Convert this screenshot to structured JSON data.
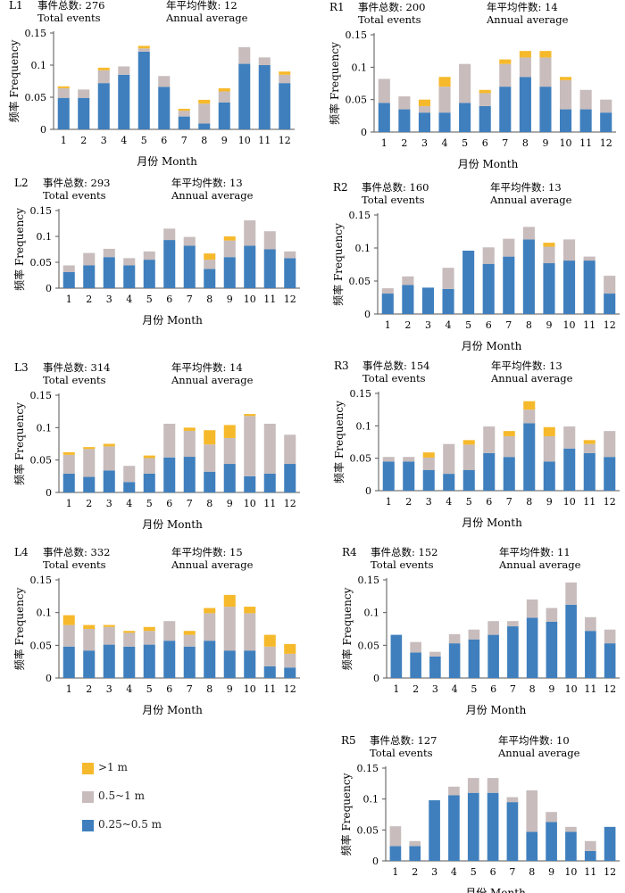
{
  "figure": {
    "labels": {
      "total_events": "Total events",
      "total_events_cn": "事件总数:",
      "annual_average": "Annual average",
      "annual_average_cn": "年平均件数:",
      "xlabel": "月份 Month",
      "ylabel": "频率 Frequency"
    },
    "legend": [
      {
        "label": ">1 m",
        "color": "#f6b92b"
      },
      {
        "label": "0.5~1 m",
        "color": "#c8bcbc"
      },
      {
        "label": "0.25~0.5 m",
        "color": "#3f7fbd"
      }
    ]
  },
  "chart_data": [
    {
      "type": "bar",
      "stacked": true,
      "id": "L1",
      "total_events": 276,
      "annual_average": 12,
      "categories": [
        "1",
        "2",
        "3",
        "4",
        "5",
        "6",
        "7",
        "8",
        "9",
        "10",
        "11",
        "12"
      ],
      "yticks": [
        "0",
        "0.05",
        "0.1",
        "0.15"
      ],
      "ylim": [
        0,
        0.15
      ],
      "series": [
        {
          "name": "0.25~0.5 m",
          "values": [
            0.049,
            0.049,
            0.072,
            0.085,
            0.121,
            0.066,
            0.02,
            0.009,
            0.042,
            0.102,
            0.1,
            0.072
          ]
        },
        {
          "name": "0.5~1 m",
          "values": [
            0.015,
            0.013,
            0.02,
            0.013,
            0.005,
            0.017,
            0.009,
            0.031,
            0.017,
            0.026,
            0.012,
            0.013
          ]
        },
        {
          "name": ">1 m",
          "values": [
            0.003,
            0.0,
            0.004,
            0.0,
            0.004,
            0.0,
            0.003,
            0.006,
            0.005,
            0.0,
            0.0,
            0.005
          ]
        }
      ]
    },
    {
      "type": "bar",
      "stacked": true,
      "id": "R1",
      "total_events": 200,
      "annual_average": 14,
      "categories": [
        "1",
        "2",
        "3",
        "4",
        "5",
        "6",
        "7",
        "8",
        "9",
        "10",
        "11",
        "12"
      ],
      "yticks": [
        "0",
        "0.05",
        "0.1",
        "0.15"
      ],
      "ylim": [
        0,
        0.15
      ],
      "series": [
        {
          "name": "0.25~0.5 m",
          "values": [
            0.045,
            0.035,
            0.03,
            0.03,
            0.045,
            0.04,
            0.07,
            0.085,
            0.07,
            0.035,
            0.035,
            0.03
          ]
        },
        {
          "name": "0.5~1 m",
          "values": [
            0.037,
            0.02,
            0.01,
            0.04,
            0.06,
            0.02,
            0.035,
            0.03,
            0.045,
            0.045,
            0.03,
            0.02
          ]
        },
        {
          "name": ">1 m",
          "values": [
            0.0,
            0.0,
            0.01,
            0.015,
            0.0,
            0.005,
            0.007,
            0.01,
            0.01,
            0.005,
            0.0,
            0.0
          ]
        }
      ]
    },
    {
      "type": "bar",
      "stacked": true,
      "id": "L2",
      "total_events": 293,
      "annual_average": 13,
      "categories": [
        "1",
        "2",
        "3",
        "4",
        "5",
        "6",
        "7",
        "8",
        "9",
        "10",
        "11",
        "12"
      ],
      "yticks": [
        "0",
        "0.05",
        "0.1",
        "0.15"
      ],
      "ylim": [
        0,
        0.15
      ],
      "series": [
        {
          "name": "0.25~0.5 m",
          "values": [
            0.031,
            0.044,
            0.06,
            0.044,
            0.055,
            0.093,
            0.082,
            0.037,
            0.06,
            0.082,
            0.075,
            0.058
          ]
        },
        {
          "name": "0.5~1 m",
          "values": [
            0.013,
            0.024,
            0.016,
            0.014,
            0.016,
            0.022,
            0.017,
            0.018,
            0.032,
            0.049,
            0.035,
            0.013
          ]
        },
        {
          "name": ">1 m",
          "values": [
            0.0,
            0.0,
            0.0,
            0.0,
            0.0,
            0.0,
            0.0,
            0.012,
            0.008,
            0.0,
            0.0,
            0.0
          ]
        }
      ]
    },
    {
      "type": "bar",
      "stacked": true,
      "id": "R2",
      "total_events": 160,
      "annual_average": 13,
      "categories": [
        "1",
        "2",
        "3",
        "4",
        "5",
        "6",
        "7",
        "8",
        "9",
        "10",
        "11",
        "12"
      ],
      "yticks": [
        "0",
        "0.05",
        "0.1",
        "0.15"
      ],
      "ylim": [
        0,
        0.15
      ],
      "series": [
        {
          "name": "0.25~0.5 m",
          "values": [
            0.031,
            0.044,
            0.04,
            0.038,
            0.096,
            0.076,
            0.087,
            0.113,
            0.077,
            0.081,
            0.081,
            0.031
          ]
        },
        {
          "name": "0.5~1 m",
          "values": [
            0.008,
            0.013,
            0.0,
            0.032,
            0.0,
            0.025,
            0.027,
            0.019,
            0.025,
            0.032,
            0.006,
            0.027
          ]
        },
        {
          "name": ">1 m",
          "values": [
            0.0,
            0.0,
            0.0,
            0.0,
            0.0,
            0.0,
            0.0,
            0.0,
            0.006,
            0.0,
            0.0,
            0.0
          ]
        }
      ]
    },
    {
      "type": "bar",
      "stacked": true,
      "id": "L3",
      "total_events": 314,
      "annual_average": 14,
      "categories": [
        "1",
        "2",
        "3",
        "4",
        "5",
        "6",
        "7",
        "8",
        "9",
        "10",
        "11",
        "12"
      ],
      "yticks": [
        "0",
        "0.05",
        "0.1",
        "0.15"
      ],
      "ylim": [
        0,
        0.15
      ],
      "series": [
        {
          "name": "0.25~0.5 m",
          "values": [
            0.029,
            0.024,
            0.034,
            0.016,
            0.029,
            0.054,
            0.055,
            0.032,
            0.044,
            0.025,
            0.029,
            0.044
          ]
        },
        {
          "name": "0.5~1 m",
          "values": [
            0.029,
            0.043,
            0.037,
            0.025,
            0.024,
            0.052,
            0.04,
            0.042,
            0.04,
            0.093,
            0.077,
            0.045
          ]
        },
        {
          "name": ">1 m",
          "values": [
            0.004,
            0.003,
            0.004,
            0.0,
            0.004,
            0.0,
            0.005,
            0.022,
            0.02,
            0.003,
            0.0,
            0.0
          ]
        }
      ]
    },
    {
      "type": "bar",
      "stacked": true,
      "id": "R3",
      "total_events": 154,
      "annual_average": 13,
      "categories": [
        "1",
        "2",
        "3",
        "4",
        "5",
        "6",
        "7",
        "8",
        "9",
        "10",
        "11",
        "12"
      ],
      "yticks": [
        "0",
        "0.05",
        "0.1",
        "0.15"
      ],
      "ylim": [
        0,
        0.15
      ],
      "series": [
        {
          "name": "0.25~0.5 m",
          "values": [
            0.045,
            0.045,
            0.032,
            0.026,
            0.032,
            0.058,
            0.052,
            0.104,
            0.045,
            0.065,
            0.058,
            0.052
          ]
        },
        {
          "name": "0.5~1 m",
          "values": [
            0.007,
            0.007,
            0.019,
            0.046,
            0.039,
            0.041,
            0.032,
            0.021,
            0.039,
            0.034,
            0.014,
            0.04
          ]
        },
        {
          "name": ">1 m",
          "values": [
            0.0,
            0.0,
            0.008,
            0.0,
            0.007,
            0.0,
            0.008,
            0.013,
            0.014,
            0.0,
            0.006,
            0.0
          ]
        }
      ]
    },
    {
      "type": "bar",
      "stacked": true,
      "id": "L4",
      "total_events": 332,
      "annual_average": 15,
      "categories": [
        "1",
        "2",
        "3",
        "4",
        "5",
        "6",
        "7",
        "8",
        "9",
        "10",
        "11",
        "12"
      ],
      "yticks": [
        "0",
        "0.05",
        "0.1",
        "0.15"
      ],
      "ylim": [
        0,
        0.15
      ],
      "series": [
        {
          "name": "0.25~0.5 m",
          "values": [
            0.048,
            0.042,
            0.051,
            0.048,
            0.051,
            0.057,
            0.048,
            0.057,
            0.042,
            0.042,
            0.018,
            0.016
          ]
        },
        {
          "name": "0.5~1 m",
          "values": [
            0.033,
            0.033,
            0.027,
            0.021,
            0.021,
            0.03,
            0.018,
            0.042,
            0.067,
            0.057,
            0.03,
            0.021
          ]
        },
        {
          "name": ">1 m",
          "values": [
            0.015,
            0.006,
            0.003,
            0.003,
            0.006,
            0.0,
            0.006,
            0.008,
            0.018,
            0.01,
            0.018,
            0.015
          ]
        }
      ]
    },
    {
      "type": "bar",
      "stacked": true,
      "id": "R4",
      "total_events": 152,
      "annual_average": 11,
      "categories": [
        "1",
        "2",
        "3",
        "4",
        "5",
        "6",
        "7",
        "8",
        "9",
        "10",
        "11",
        "12"
      ],
      "yticks": [
        "0",
        "0.05",
        "0.1",
        "0.15"
      ],
      "ylim": [
        0,
        0.15
      ],
      "series": [
        {
          "name": "0.25~0.5 m",
          "values": [
            0.066,
            0.039,
            0.033,
            0.053,
            0.059,
            0.066,
            0.079,
            0.092,
            0.086,
            0.112,
            0.072,
            0.053
          ]
        },
        {
          "name": "0.5~1 m",
          "values": [
            0.0,
            0.016,
            0.007,
            0.014,
            0.015,
            0.021,
            0.008,
            0.028,
            0.021,
            0.034,
            0.021,
            0.021
          ]
        },
        {
          "name": ">1 m",
          "values": [
            0.0,
            0.0,
            0.0,
            0.0,
            0.0,
            0.0,
            0.0,
            0.0,
            0.0,
            0.0,
            0.0,
            0.0
          ]
        }
      ]
    },
    {
      "type": "bar",
      "stacked": true,
      "id": "R5",
      "total_events": 127,
      "annual_average": 10,
      "categories": [
        "1",
        "2",
        "3",
        "4",
        "5",
        "6",
        "7",
        "8",
        "9",
        "10",
        "11",
        "12"
      ],
      "yticks": [
        "0",
        "0.05",
        "0.1",
        "0.15"
      ],
      "ylim": [
        0,
        0.15
      ],
      "series": [
        {
          "name": "0.25~0.5 m",
          "values": [
            0.024,
            0.024,
            0.098,
            0.106,
            0.11,
            0.11,
            0.095,
            0.047,
            0.063,
            0.047,
            0.016,
            0.055
          ]
        },
        {
          "name": "0.5~1 m",
          "values": [
            0.032,
            0.008,
            0.0,
            0.014,
            0.024,
            0.024,
            0.008,
            0.067,
            0.016,
            0.008,
            0.016,
            0.0
          ]
        },
        {
          "name": ">1 m",
          "values": [
            0.0,
            0.0,
            0.0,
            0.0,
            0.0,
            0.0,
            0.0,
            0.0,
            0.0,
            0.0,
            0.0,
            0.0
          ]
        }
      ]
    }
  ]
}
